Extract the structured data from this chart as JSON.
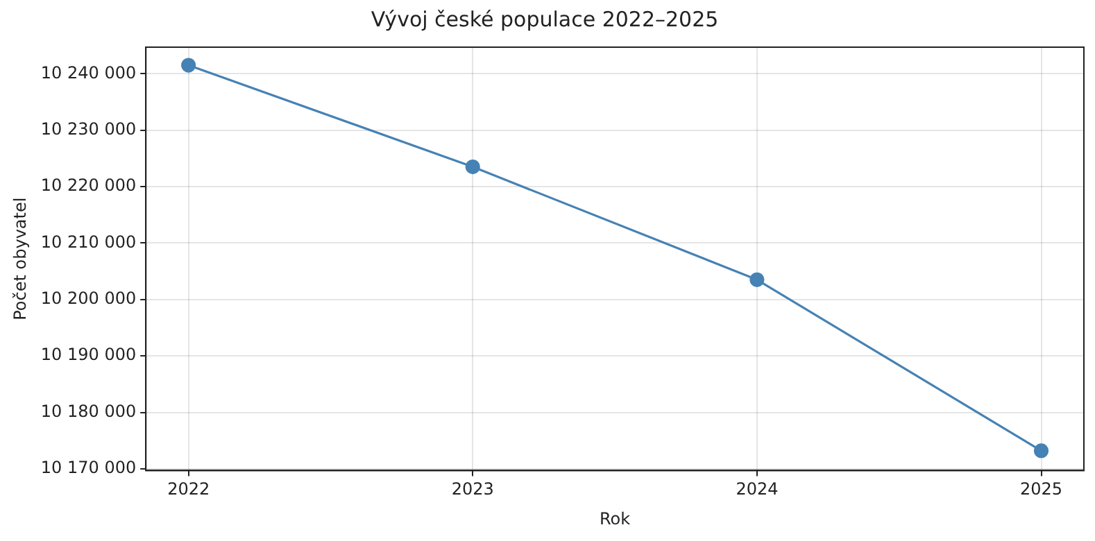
{
  "chart_data": {
    "type": "line",
    "title": "Vývoj české populace 2022–2025",
    "xlabel": "Rok",
    "ylabel": "Počet obyvatel",
    "x": [
      2022,
      2023,
      2024,
      2025
    ],
    "series": [
      {
        "color": "#4682b4",
        "values": [
          10241500,
          10223500,
          10203500,
          10173200
        ]
      }
    ],
    "xlim": [
      2021.85,
      2025.15
    ],
    "xticks": [
      2022,
      2023,
      2024,
      2025
    ],
    "ylim": [
      10169700,
      10244700
    ],
    "yticks": [
      {
        "value": 10170000,
        "label": "10 170 000"
      },
      {
        "value": 10180000,
        "label": "10 180 000"
      },
      {
        "value": 10190000,
        "label": "10 190 000"
      },
      {
        "value": 10200000,
        "label": "10 200 000"
      },
      {
        "value": 10210000,
        "label": "10 210 000"
      },
      {
        "value": 10220000,
        "label": "10 220 000"
      },
      {
        "value": 10230000,
        "label": "10 230 000"
      },
      {
        "value": 10240000,
        "label": "10 240 000"
      }
    ],
    "grid": true,
    "marker": "circle"
  }
}
